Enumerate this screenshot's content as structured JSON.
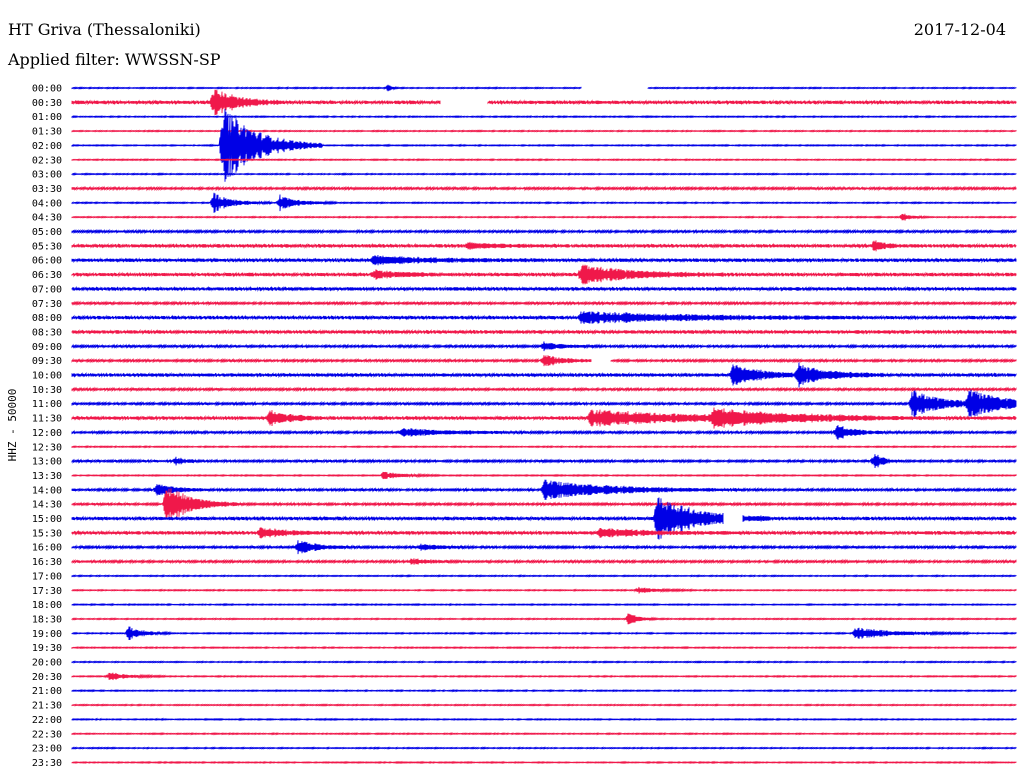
{
  "header": {
    "station": "HT Griva (Thessaloniki)",
    "date": "2017-12-04",
    "filter": "Applied filter: WWSSN-SP"
  },
  "chart_data": {
    "type": "helicorder",
    "ylabel": "HHZ - 50000",
    "row_labels": [
      "00:00",
      "00:30",
      "01:00",
      "01:30",
      "02:00",
      "02:30",
      "03:00",
      "03:30",
      "04:00",
      "04:30",
      "05:00",
      "05:30",
      "06:00",
      "06:30",
      "07:00",
      "07:30",
      "08:00",
      "08:30",
      "09:00",
      "09:30",
      "10:00",
      "10:30",
      "11:00",
      "11:30",
      "12:00",
      "12:30",
      "13:00",
      "13:30",
      "14:00",
      "14:30",
      "15:00",
      "15:30",
      "16:00",
      "16:30",
      "17:00",
      "17:30",
      "18:00",
      "18:30",
      "19:00",
      "19:30",
      "20:00",
      "20:30",
      "21:00",
      "21:30",
      "22:00",
      "22:30",
      "23:00",
      "23:30"
    ],
    "colors": [
      "#0000e6",
      "#f0184a"
    ],
    "noise_level": [
      1,
      3,
      1,
      1,
      1,
      1,
      1,
      2,
      1,
      1,
      2,
      3,
      3,
      3,
      3,
      2,
      3,
      3,
      2,
      2,
      3,
      2,
      2,
      3,
      2,
      1,
      2,
      1,
      2,
      2,
      3,
      3,
      2,
      2,
      1,
      1,
      1,
      1,
      1,
      1,
      1,
      1,
      1,
      1,
      1,
      1,
      1,
      1
    ],
    "events": [
      {
        "row": 0,
        "t": 0.335,
        "amp": 3,
        "dur": 0.004
      },
      {
        "row": 1,
        "t": 0.15,
        "amp": 14,
        "dur": 0.025
      },
      {
        "row": 4,
        "t": 0.16,
        "amp": 40,
        "dur": 0.035
      },
      {
        "row": 8,
        "t": 0.15,
        "amp": 10,
        "dur": 0.02
      },
      {
        "row": 8,
        "t": 0.22,
        "amp": 8,
        "dur": 0.02
      },
      {
        "row": 9,
        "t": 0.88,
        "amp": 4,
        "dur": 0.01
      },
      {
        "row": 11,
        "t": 0.85,
        "amp": 6,
        "dur": 0.01
      },
      {
        "row": 11,
        "t": 0.42,
        "amp": 3,
        "dur": 0.03
      },
      {
        "row": 12,
        "t": 0.32,
        "amp": 4,
        "dur": 0.06
      },
      {
        "row": 13,
        "t": 0.54,
        "amp": 10,
        "dur": 0.05
      },
      {
        "row": 13,
        "t": 0.32,
        "amp": 4,
        "dur": 0.03
      },
      {
        "row": 16,
        "t": 0.54,
        "amp": 6,
        "dur": 0.1
      },
      {
        "row": 18,
        "t": 0.5,
        "amp": 4,
        "dur": 0.02
      },
      {
        "row": 19,
        "t": 0.5,
        "amp": 6,
        "dur": 0.02
      },
      {
        "row": 20,
        "t": 0.7,
        "amp": 10,
        "dur": 0.03
      },
      {
        "row": 20,
        "t": 0.77,
        "amp": 10,
        "dur": 0.03
      },
      {
        "row": 22,
        "t": 0.89,
        "amp": 14,
        "dur": 0.03
      },
      {
        "row": 22,
        "t": 0.95,
        "amp": 14,
        "dur": 0.04
      },
      {
        "row": 23,
        "t": 0.21,
        "amp": 8,
        "dur": 0.02
      },
      {
        "row": 23,
        "t": 0.55,
        "amp": 8,
        "dur": 0.1
      },
      {
        "row": 23,
        "t": 0.68,
        "amp": 8,
        "dur": 0.08
      },
      {
        "row": 24,
        "t": 0.35,
        "amp": 4,
        "dur": 0.05
      },
      {
        "row": 24,
        "t": 0.81,
        "amp": 7,
        "dur": 0.02
      },
      {
        "row": 26,
        "t": 0.11,
        "amp": 4,
        "dur": 0.01
      },
      {
        "row": 26,
        "t": 0.85,
        "amp": 8,
        "dur": 0.01
      },
      {
        "row": 27,
        "t": 0.33,
        "amp": 4,
        "dur": 0.02
      },
      {
        "row": 28,
        "t": 0.09,
        "amp": 6,
        "dur": 0.02
      },
      {
        "row": 28,
        "t": 0.5,
        "amp": 10,
        "dur": 0.07
      },
      {
        "row": 29,
        "t": 0.1,
        "amp": 20,
        "dur": 0.025
      },
      {
        "row": 30,
        "t": 0.62,
        "amp": 22,
        "dur": 0.04
      },
      {
        "row": 31,
        "t": 0.2,
        "amp": 5,
        "dur": 0.025
      },
      {
        "row": 31,
        "t": 0.56,
        "amp": 4,
        "dur": 0.05
      },
      {
        "row": 32,
        "t": 0.24,
        "amp": 7,
        "dur": 0.02
      },
      {
        "row": 32,
        "t": 0.37,
        "amp": 3,
        "dur": 0.02
      },
      {
        "row": 33,
        "t": 0.36,
        "amp": 3,
        "dur": 0.02
      },
      {
        "row": 35,
        "t": 0.6,
        "amp": 3,
        "dur": 0.02
      },
      {
        "row": 37,
        "t": 0.59,
        "amp": 7,
        "dur": 0.01
      },
      {
        "row": 38,
        "t": 0.06,
        "amp": 7,
        "dur": 0.015
      },
      {
        "row": 38,
        "t": 0.83,
        "amp": 6,
        "dur": 0.04
      },
      {
        "row": 41,
        "t": 0.04,
        "amp": 4,
        "dur": 0.02
      }
    ],
    "gaps": [
      {
        "row": 0,
        "t0": 0.54,
        "t1": 0.61
      },
      {
        "row": 1,
        "t0": 0.39,
        "t1": 0.44
      },
      {
        "row": 19,
        "t0": 0.55,
        "t1": 0.57
      },
      {
        "row": 30,
        "t0": 0.69,
        "t1": 0.71
      }
    ]
  }
}
